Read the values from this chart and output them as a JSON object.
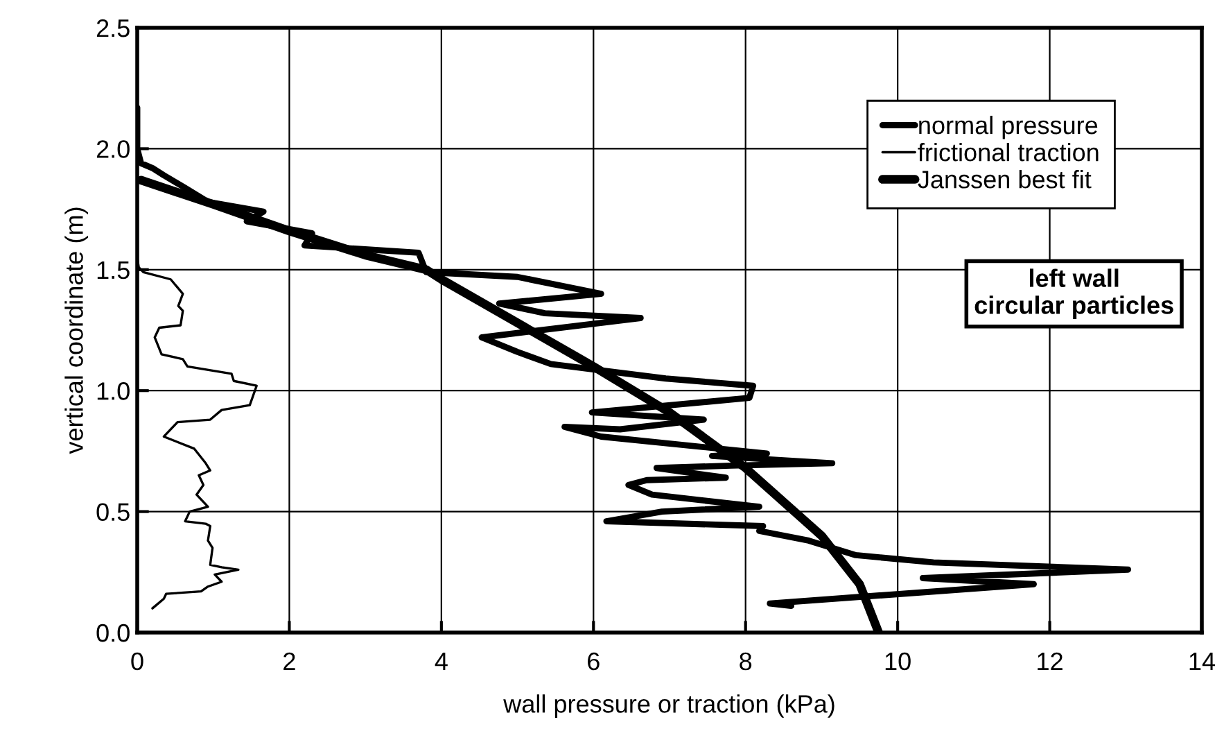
{
  "chart_data": {
    "type": "line",
    "xlabel": "wall pressure or traction (kPa)",
    "ylabel": "vertical coordinate (m)",
    "xlim": [
      0,
      14
    ],
    "ylim": [
      0,
      2.5
    ],
    "xticks": [
      0,
      2,
      4,
      6,
      8,
      10,
      12,
      14
    ],
    "yticks": [
      {
        "value": 0,
        "label": "0.0"
      },
      {
        "value": 0.5,
        "label": "0.5"
      },
      {
        "value": 1,
        "label": "1.0"
      },
      {
        "value": 1.5,
        "label": "1.5"
      },
      {
        "value": 2,
        "label": "2.0"
      },
      {
        "value": 2.5,
        "label": "2.5"
      }
    ],
    "grid": true,
    "legend": "top right",
    "marker": "none",
    "line_style": "solid",
    "annotations": [
      "left wall\ncircular particles"
    ],
    "series": [
      {
        "name": "normal pressure",
        "color": "#000000",
        "x": [
          8.6,
          8.32,
          11.79,
          10.33,
          13.03,
          10.47,
          9.45,
          8.83,
          8.18,
          8.23,
          6.17,
          6.9,
          8.18,
          6.77,
          6.46,
          6.7,
          7.74,
          6.83,
          7.81,
          9.14,
          7.56,
          8.28,
          6.1,
          5.62,
          6.35,
          7.45,
          5.98,
          8.05,
          8.1,
          6.95,
          5.44,
          5.0,
          4.53,
          6.62,
          5.36,
          4.76,
          6.1,
          5.0,
          3.8,
          3.7,
          2.2,
          2.3,
          1.44,
          1.66,
          0.93,
          0.62,
          0.35,
          0.2,
          0.05,
          0,
          0
        ],
        "values": [
          0.11,
          0.12,
          0.2,
          0.225,
          0.26,
          0.29,
          0.32,
          0.38,
          0.42,
          0.44,
          0.46,
          0.5,
          0.52,
          0.57,
          0.61,
          0.63,
          0.64,
          0.68,
          0.69,
          0.7,
          0.73,
          0.74,
          0.81,
          0.85,
          0.84,
          0.88,
          0.91,
          0.97,
          1.02,
          1.05,
          1.11,
          1.16,
          1.22,
          1.3,
          1.32,
          1.36,
          1.4,
          1.47,
          1.49,
          1.57,
          1.6,
          1.65,
          1.7,
          1.74,
          1.78,
          1.84,
          1.89,
          1.92,
          1.94,
          2.0,
          2.17
        ]
      },
      {
        "name": "frictional traction",
        "color": "#000000",
        "x": [
          0.2,
          0.35,
          0.38,
          0.84,
          0.93,
          1.11,
          1.02,
          1.33,
          1.11,
          0.96,
          0.99,
          0.93,
          0.96,
          0.9,
          0.63,
          0.69,
          0.93,
          0.78,
          0.87,
          0.81,
          0.96,
          0.9,
          0.75,
          0.35,
          0.53,
          0.96,
          1.11,
          1.48,
          1.57,
          1.27,
          1.24,
          0.66,
          0.6,
          0.32,
          0.23,
          0.29,
          0.57,
          0.6,
          0.54,
          0.6,
          0.44,
          0.08,
          0.02,
          0,
          0
        ],
        "values": [
          0.1,
          0.14,
          0.16,
          0.17,
          0.19,
          0.21,
          0.24,
          0.26,
          0.27,
          0.28,
          0.35,
          0.38,
          0.44,
          0.45,
          0.46,
          0.5,
          0.52,
          0.57,
          0.61,
          0.65,
          0.67,
          0.7,
          0.76,
          0.81,
          0.87,
          0.88,
          0.92,
          0.94,
          1.02,
          1.04,
          1.07,
          1.1,
          1.13,
          1.15,
          1.22,
          1.26,
          1.27,
          1.33,
          1.35,
          1.4,
          1.46,
          1.49,
          1.51,
          1.55,
          1.75
        ]
      },
      {
        "name": "Janssen best fit",
        "color": "#000000",
        "x": [
          0.05,
          1,
          2,
          3,
          3.8,
          4,
          5,
          6,
          7,
          8,
          9,
          9.5,
          9.75
        ],
        "values": [
          1.87,
          1.77,
          1.66,
          1.56,
          1.5,
          1.46,
          1.28,
          1.1,
          0.91,
          0.68,
          0.4,
          0.2,
          0
        ]
      }
    ]
  }
}
